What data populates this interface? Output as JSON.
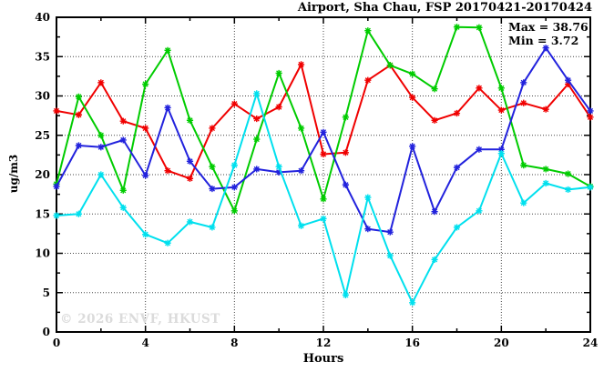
{
  "header": {
    "title": "Airport, Sha Chau, FSP 20170421-20170424"
  },
  "annotations": {
    "max_label": "Max = 38.76",
    "min_label": "Min = 3.72"
  },
  "watermark": {
    "text": "© 2026 ENVF, HKUST"
  },
  "chart_data": {
    "type": "line",
    "title": "Airport, Sha Chau, FSP 20170421-20170424",
    "xlabel": "Hours",
    "ylabel": "ug/m3",
    "xlim": [
      0,
      24
    ],
    "ylim": [
      0,
      40
    ],
    "x_ticks": [
      0,
      4,
      8,
      12,
      16,
      20,
      24
    ],
    "y_ticks": [
      0,
      5,
      10,
      15,
      20,
      25,
      30,
      35,
      40
    ],
    "x_minor_step": 2,
    "y_minor_step": 2.5,
    "grid": true,
    "legend_position": "none",
    "max_value": 38.76,
    "min_value": 3.72,
    "x": [
      0,
      1,
      2,
      3,
      4,
      5,
      6,
      7,
      8,
      9,
      10,
      11,
      12,
      13,
      14,
      15,
      16,
      17,
      18,
      19,
      20,
      21,
      22,
      23,
      24
    ],
    "series": [
      {
        "name": "red",
        "color": "#f00000",
        "values": [
          28.1,
          27.6,
          31.7,
          26.8,
          25.9,
          20.5,
          19.5,
          25.9,
          29.0,
          27.1,
          28.6,
          34.0,
          22.6,
          22.8,
          32.0,
          33.9,
          29.8,
          26.9,
          27.8,
          31.0,
          28.2,
          29.1,
          28.3,
          31.5,
          27.3
        ]
      },
      {
        "name": "green",
        "color": "#00cc00",
        "values": [
          18.8,
          29.9,
          25.0,
          18.0,
          31.5,
          35.8,
          26.9,
          21.0,
          15.4,
          24.5,
          32.9,
          25.9,
          16.9,
          27.3,
          38.3,
          33.9,
          32.8,
          30.9,
          38.76,
          38.7,
          31.0,
          21.2,
          20.7,
          20.1,
          18.5
        ]
      },
      {
        "name": "blue",
        "color": "#2222dd",
        "values": [
          18.5,
          23.7,
          23.5,
          24.4,
          19.9,
          28.5,
          21.7,
          18.2,
          18.4,
          20.7,
          20.3,
          20.5,
          25.4,
          18.7,
          13.1,
          12.7,
          23.6,
          15.3,
          20.9,
          23.2,
          23.2,
          31.7,
          36.1,
          32.0,
          28.1
        ]
      },
      {
        "name": "cyan",
        "color": "#00e0ee",
        "values": [
          14.8,
          15.0,
          20.0,
          15.8,
          12.4,
          11.3,
          14.0,
          13.3,
          21.2,
          30.3,
          21.0,
          13.5,
          14.4,
          4.7,
          17.1,
          9.7,
          3.72,
          9.2,
          13.3,
          15.4,
          22.7,
          16.4,
          18.9,
          18.1,
          18.4
        ]
      }
    ]
  }
}
